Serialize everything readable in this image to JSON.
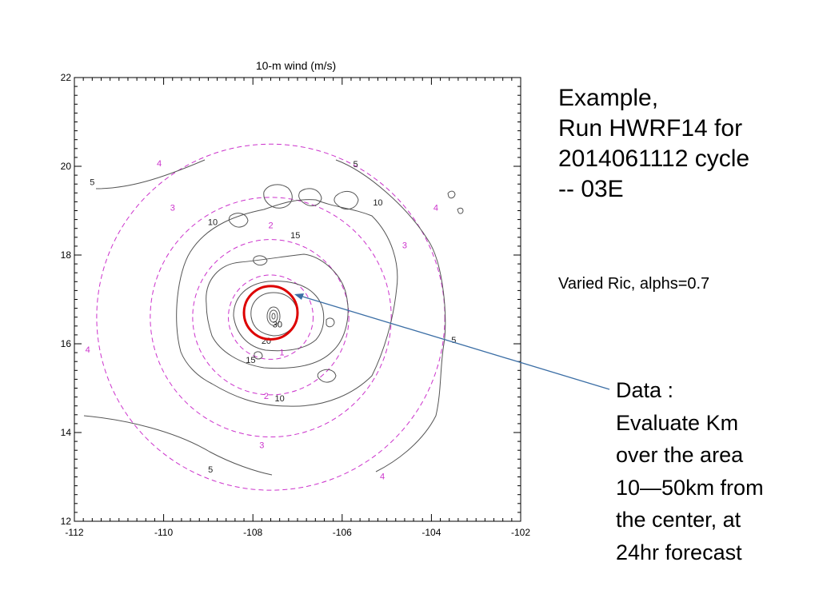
{
  "chart_data": {
    "type": "contour",
    "title": "10-m wind (m/s)",
    "xlabel": "",
    "ylabel": "",
    "xlim": [
      -112,
      -102
    ],
    "ylim": [
      12,
      22
    ],
    "x_ticks": [
      -112,
      -110,
      -108,
      -106,
      -104,
      -102
    ],
    "y_ticks": [
      12,
      14,
      16,
      18,
      20,
      22
    ],
    "x_tick_labels": [
      "-112",
      "-110",
      "-108",
      "-106",
      "-104",
      "-102"
    ],
    "y_tick_labels": [
      "12",
      "14",
      "16",
      "18",
      "20",
      "22"
    ],
    "center": [
      -107.6,
      16.6
    ],
    "solid_series": {
      "name": "10-m wind speed",
      "color": "#555555",
      "contour_levels": [
        5,
        10,
        15,
        20,
        30
      ],
      "labels": [
        {
          "text": "5",
          "x": -111.6,
          "y": 19.58
        },
        {
          "text": "5",
          "x": -105.7,
          "y": 19.98
        },
        {
          "text": "5",
          "x": -103.5,
          "y": 16.02
        },
        {
          "text": "5",
          "x": -108.95,
          "y": 13.1
        },
        {
          "text": "10",
          "x": -108.9,
          "y": 18.68
        },
        {
          "text": "10",
          "x": -105.2,
          "y": 19.12
        },
        {
          "text": "10",
          "x": -107.4,
          "y": 14.7
        },
        {
          "text": "15",
          "x": -107.05,
          "y": 18.38
        },
        {
          "text": "15",
          "x": -108.05,
          "y": 15.57
        },
        {
          "text": "20",
          "x": -107.7,
          "y": 16.0
        },
        {
          "text": "30",
          "x": -107.45,
          "y": 16.37
        }
      ]
    },
    "dashed_series": {
      "name": "distance rings",
      "color": "#cc33cc",
      "levels": [
        1,
        2,
        3,
        4
      ],
      "labels": [
        {
          "text": "1",
          "x": -107.35,
          "y": 15.74
        },
        {
          "text": "2",
          "x": -107.6,
          "y": 18.6
        },
        {
          "text": "2",
          "x": -107.7,
          "y": 14.76
        },
        {
          "text": "3",
          "x": -109.8,
          "y": 19.0
        },
        {
          "text": "3",
          "x": -104.6,
          "y": 18.15
        },
        {
          "text": "3",
          "x": -107.8,
          "y": 13.65
        },
        {
          "text": "4",
          "x": -110.1,
          "y": 20.0
        },
        {
          "text": "4",
          "x": -103.9,
          "y": 19.0
        },
        {
          "text": "4",
          "x": -111.7,
          "y": 15.8
        },
        {
          "text": "4",
          "x": -105.1,
          "y": 12.95
        }
      ]
    },
    "highlight": {
      "shape": "circle",
      "color": "#dd0000",
      "center": [
        -107.6,
        16.7
      ],
      "radius_deg": 0.6
    },
    "grid": false
  },
  "side_title": [
    "Example,",
    "Run HWRF14 for",
    "2014061112 cycle",
    "-- 03E"
  ],
  "side_note": "Varied Ric, alphs=0.7",
  "data_box": [
    "Data :",
    "Evaluate Km",
    "over the area",
    "10—50km from",
    "the center, at",
    "24hr forecast"
  ],
  "colors": {
    "arrow": "#3b6ea5",
    "axes": "#000000"
  }
}
